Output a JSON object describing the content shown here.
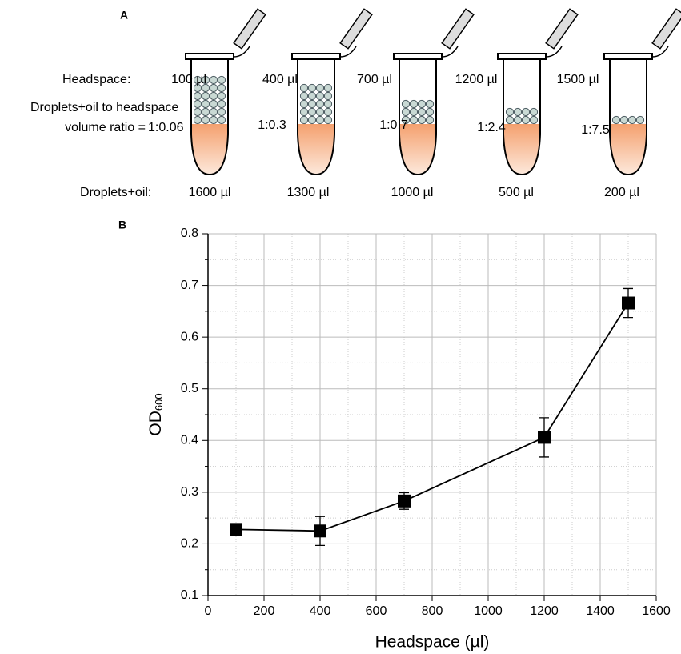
{
  "panel_a": {
    "label": "A",
    "headspace_label": "Headspace:",
    "ratio_label": [
      "Droplets+oil to headspace",
      "volume ratio ="
    ],
    "droplets_label": "Droplets+oil:",
    "tubes": [
      {
        "headspace": "100 µl",
        "ratio": "1:0.06",
        "droplets": "1600 µl"
      },
      {
        "headspace": "400 µl",
        "ratio": "1:0.3",
        "droplets": "1300 µl"
      },
      {
        "headspace": "700 µl",
        "ratio": "1:0.7",
        "droplets": "1000 µl"
      },
      {
        "headspace": "1200 µl",
        "ratio": "1:2.4",
        "droplets": "500 µl"
      },
      {
        "headspace": "1500 µl",
        "ratio": "1:7.5",
        "droplets": "200 µl"
      }
    ]
  },
  "chart_data": {
    "type": "line",
    "panel_label": "B",
    "xlabel": "Headspace (µl)",
    "ylabel": "OD",
    "ylabel_sub": "600",
    "x": [
      100,
      400,
      700,
      1200,
      1500
    ],
    "values": [
      0.228,
      0.225,
      0.283,
      0.406,
      0.666
    ],
    "errors": [
      0.005,
      0.028,
      0.016,
      0.038,
      0.028
    ],
    "color": "#000000",
    "xlim": [
      0,
      1600
    ],
    "ylim": [
      0.1,
      0.8
    ],
    "xticks": [
      0,
      200,
      400,
      600,
      800,
      1000,
      1200,
      1400,
      1600
    ],
    "yticks": [
      0.1,
      0.2,
      0.3,
      0.4,
      0.5,
      0.6,
      0.7,
      0.8
    ],
    "minor_xticks": [
      100,
      300,
      500,
      700,
      900,
      1100,
      1300,
      1500
    ],
    "minor_yticks": [
      0.15,
      0.25,
      0.35,
      0.45,
      0.55,
      0.65,
      0.75
    ],
    "grid": true
  }
}
